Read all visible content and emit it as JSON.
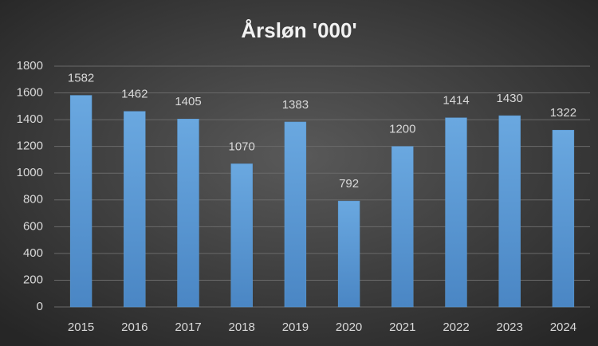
{
  "chart_data": {
    "type": "bar",
    "title": "Årsløn '000'",
    "categories": [
      "2015",
      "2016",
      "2017",
      "2018",
      "2019",
      "2020",
      "2021",
      "2022",
      "2023",
      "2024"
    ],
    "values": [
      1582,
      1462,
      1405,
      1070,
      1383,
      792,
      1200,
      1414,
      1430,
      1322
    ],
    "color": "#5b9bd5",
    "ylim": [
      0,
      1800
    ],
    "yticks": [
      0,
      200,
      400,
      600,
      800,
      1000,
      1200,
      1400,
      1600,
      1800
    ],
    "grid": true
  }
}
